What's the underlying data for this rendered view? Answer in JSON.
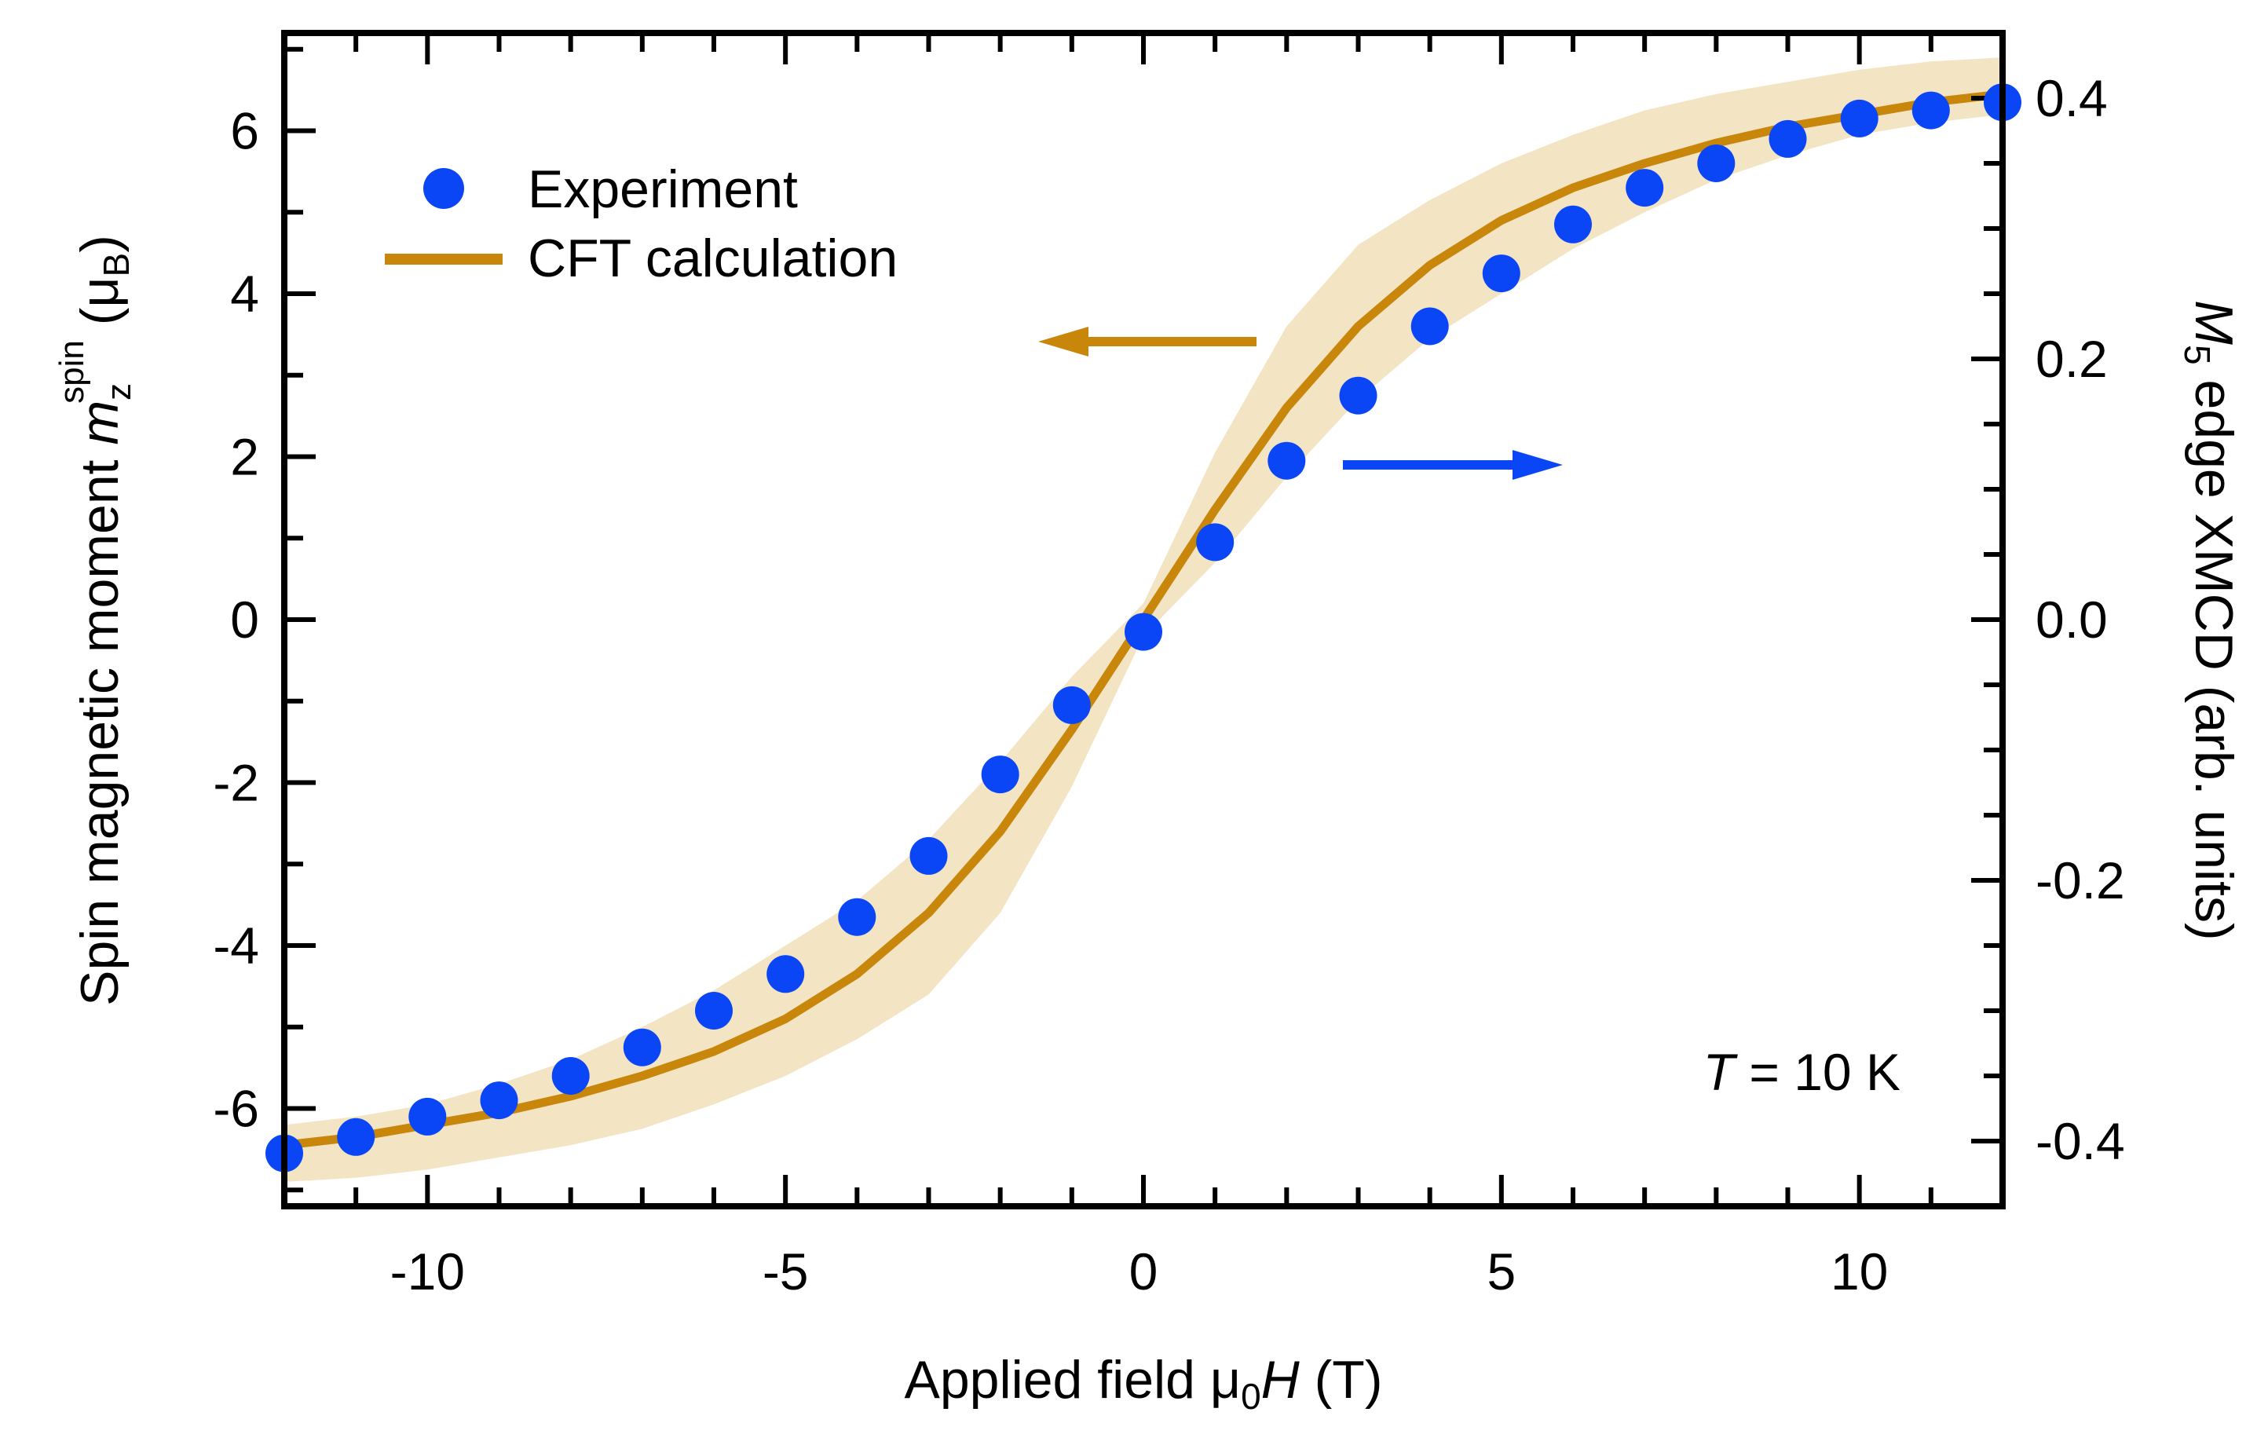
{
  "chart_data": {
    "type": "scatter",
    "title": "",
    "xlabel": {
      "prefix": "Applied field μ",
      "sub": "0",
      "italic": "H",
      "suffix": " (T)"
    },
    "ylabel": {
      "prefix": "Spin magnetic moment ",
      "italic": "m",
      "sub": "z",
      "sup": "spin",
      "unit": " (μ",
      "unit_sub": "B",
      "unit_close": ")"
    },
    "y2label": {
      "italic": "M",
      "sub": "5",
      "rest": " edge XMCD (arb. units)"
    },
    "xlim": [
      -12,
      12
    ],
    "ylim": [
      -7.2,
      7.2
    ],
    "y2lim": [
      -0.45,
      0.45
    ],
    "xticks": [
      -10,
      -5,
      0,
      5,
      10
    ],
    "xtick_labels": [
      "-10",
      "-5",
      "0",
      "5",
      "10"
    ],
    "yticks": [
      -6,
      -4,
      -2,
      0,
      2,
      4,
      6
    ],
    "ytick_labels": [
      "-6",
      "-4",
      "-2",
      "0",
      "2",
      "4",
      "6"
    ],
    "y2ticks": [
      -0.4,
      -0.2,
      0.0,
      0.2,
      0.4
    ],
    "y2tick_labels": [
      "-0.4",
      "-0.2",
      "0.0",
      "0.2",
      "0.4"
    ],
    "legend": {
      "position": "top-left",
      "entries": [
        "Experiment",
        "CFT calculation"
      ]
    },
    "annotation": {
      "italic": "T",
      "rest": " = 10 K"
    },
    "colors": {
      "experiment": "#0a46f5",
      "calculation": "#c8860a",
      "band": "#f3e4c4",
      "arrow_left": "#c8860a",
      "arrow_right": "#0a46f5"
    },
    "series": [
      {
        "name": "Experiment",
        "kind": "markers",
        "x": [
          -12,
          -11,
          -10,
          -9,
          -8,
          -7,
          -6,
          -5,
          -4,
          -3,
          -2,
          -1,
          0,
          1,
          2,
          3,
          4,
          5,
          6,
          7,
          8,
          9,
          10,
          11,
          12
        ],
        "y": [
          -6.55,
          -6.35,
          -6.1,
          -5.9,
          -5.6,
          -5.25,
          -4.8,
          -4.35,
          -3.65,
          -2.9,
          -1.9,
          -1.05,
          -0.15,
          0.95,
          1.95,
          2.75,
          3.6,
          4.25,
          4.85,
          5.3,
          5.6,
          5.9,
          6.15,
          6.25,
          6.35
        ]
      },
      {
        "name": "CFT calculation",
        "kind": "line",
        "x": [
          -12,
          -11,
          -10,
          -9,
          -8,
          -7,
          -6,
          -5,
          -4,
          -3,
          -2,
          -1,
          0,
          1,
          2,
          3,
          4,
          5,
          6,
          7,
          8,
          9,
          10,
          11,
          12
        ],
        "y": [
          -6.45,
          -6.35,
          -6.2,
          -6.05,
          -5.85,
          -5.6,
          -5.3,
          -4.9,
          -4.35,
          -3.6,
          -2.6,
          -1.35,
          0.0,
          1.35,
          2.6,
          3.6,
          4.35,
          4.9,
          5.3,
          5.6,
          5.85,
          6.05,
          6.2,
          6.35,
          6.45
        ]
      },
      {
        "name": "CFT uncertainty band",
        "kind": "band",
        "x": [
          -12,
          -11,
          -10,
          -9,
          -8,
          -7,
          -6,
          -5,
          -4,
          -3,
          -2,
          -1,
          0,
          1,
          2,
          3,
          4,
          5,
          6,
          7,
          8,
          9,
          10,
          11,
          12
        ],
        "lower": [
          -6.9,
          -6.85,
          -6.75,
          -6.6,
          -6.45,
          -6.25,
          -5.95,
          -5.6,
          -5.15,
          -4.6,
          -3.6,
          -2.05,
          -0.2,
          0.7,
          1.75,
          2.7,
          3.45,
          4.0,
          4.55,
          5.0,
          5.4,
          5.7,
          5.95,
          6.1,
          6.2
        ],
        "upper": [
          -6.2,
          -6.1,
          -5.95,
          -5.7,
          -5.4,
          -5.0,
          -4.55,
          -4.0,
          -3.45,
          -2.7,
          -1.75,
          -0.7,
          0.2,
          2.05,
          3.6,
          4.6,
          5.15,
          5.6,
          5.95,
          6.25,
          6.45,
          6.6,
          6.75,
          6.85,
          6.9
        ]
      }
    ]
  }
}
